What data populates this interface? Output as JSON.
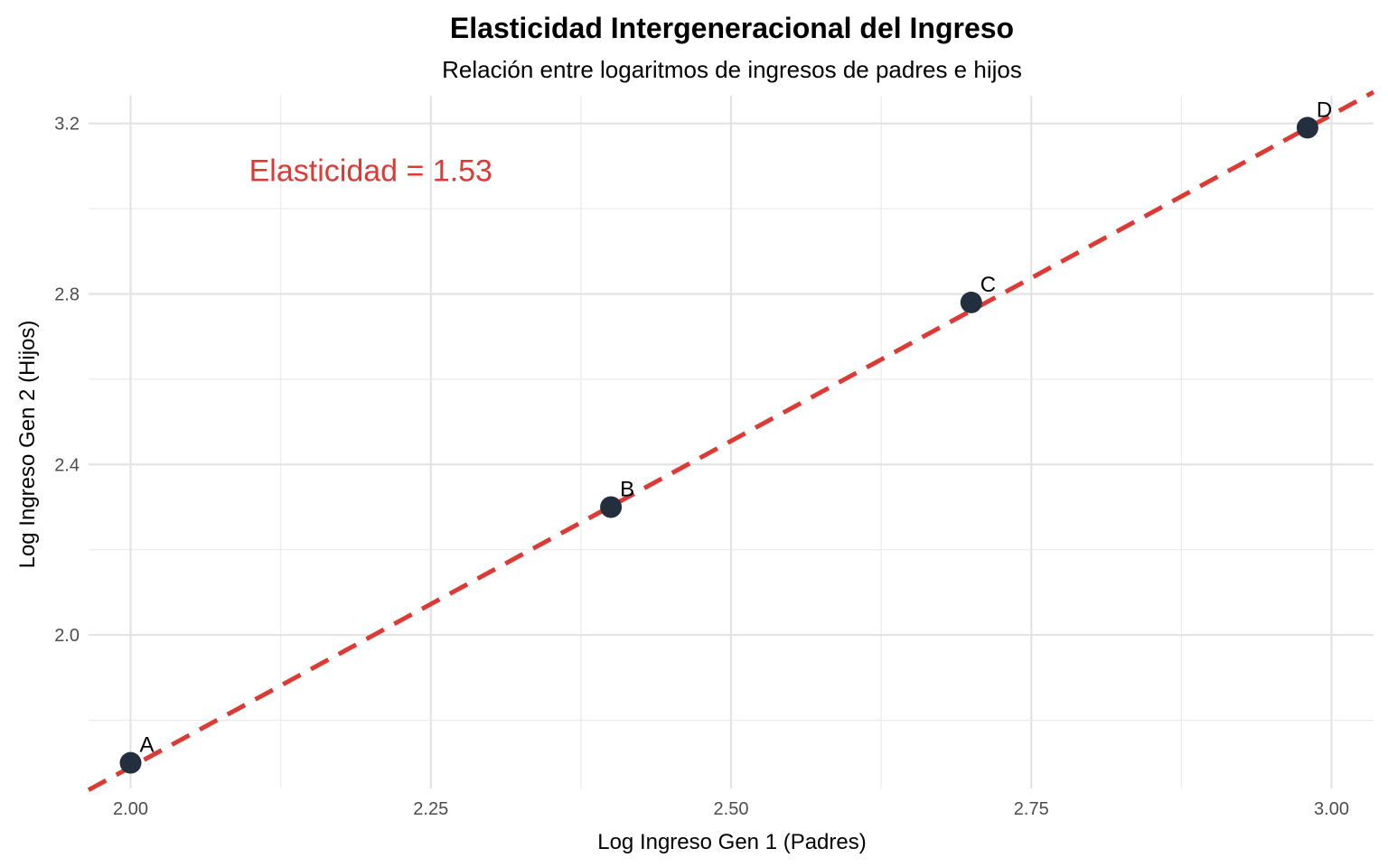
{
  "chart_data": {
    "type": "scatter",
    "title": "Elasticidad Intergeneracional del Ingreso",
    "subtitle": "Relación entre logaritmos de ingresos de padres e hijos",
    "xlabel": "Log Ingreso Gen 1 (Padres)",
    "ylabel": "Log Ingreso Gen 2 (Hijos)",
    "xlim": [
      1.965,
      3.035
    ],
    "ylim": [
      1.64,
      3.265
    ],
    "x_ticks": [
      2.0,
      2.25,
      2.5,
      2.75,
      3.0
    ],
    "x_tick_labels": [
      "2.00",
      "2.25",
      "2.50",
      "2.75",
      "3.00"
    ],
    "y_ticks": [
      2.0,
      2.4,
      2.8,
      3.2
    ],
    "y_tick_labels": [
      "2.0",
      "2.4",
      "2.8",
      "3.2"
    ],
    "grid": true,
    "points": [
      {
        "label": "A",
        "x": 2.0,
        "y": 1.7
      },
      {
        "label": "B",
        "x": 2.4,
        "y": 2.3
      },
      {
        "label": "C",
        "x": 2.7,
        "y": 2.78
      },
      {
        "label": "D",
        "x": 2.98,
        "y": 3.19
      }
    ],
    "fit_line": {
      "slope": 1.53,
      "intercept": -1.37,
      "style": "dashed",
      "color": "#dc3a35"
    },
    "annotation": {
      "text": "Elasticidad = 1.53",
      "x": 2.2,
      "y": 3.09,
      "color": "#dc3a35"
    },
    "point_color": "#232f3e"
  }
}
